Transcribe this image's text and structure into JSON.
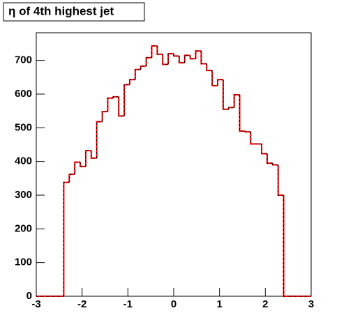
{
  "chart_data": {
    "type": "histogram",
    "title": "η of 4th highest jet",
    "bins": [
      -3,
      -2.88,
      -2.76,
      -2.64,
      -2.52,
      -2.4,
      -2.28,
      -2.16,
      -2.04,
      -1.92,
      -1.8,
      -1.68,
      -1.56,
      -1.44,
      -1.32,
      -1.2,
      -1.08,
      -0.96,
      -0.84,
      -0.72,
      -0.6,
      -0.48,
      -0.36,
      -0.24,
      -0.12,
      0,
      0.12,
      0.24,
      0.36,
      0.48,
      0.6,
      0.72,
      0.84,
      0.96,
      1.08,
      1.2,
      1.32,
      1.44,
      1.56,
      1.68,
      1.8,
      1.92,
      2.04,
      2.16,
      2.28,
      2.4,
      2.52,
      2.64,
      2.76,
      2.88,
      3
    ],
    "values": [
      0,
      0,
      0,
      0,
      0,
      338,
      362,
      398,
      385,
      432,
      410,
      518,
      548,
      588,
      592,
      535,
      628,
      643,
      673,
      683,
      708,
      743,
      718,
      688,
      720,
      713,
      693,
      715,
      705,
      728,
      690,
      670,
      625,
      643,
      555,
      560,
      598,
      490,
      488,
      452,
      452,
      423,
      395,
      390,
      300,
      0,
      0,
      0,
      0,
      0
    ],
    "color": "#ff0000",
    "overlay_color": "#000000",
    "xlim": [
      -3,
      3
    ],
    "xticks": [
      -3,
      -2,
      -1,
      0,
      1,
      2,
      3
    ],
    "ylim": [
      0,
      782
    ],
    "yticks": [
      0,
      100,
      200,
      300,
      400,
      500,
      600,
      700
    ]
  }
}
